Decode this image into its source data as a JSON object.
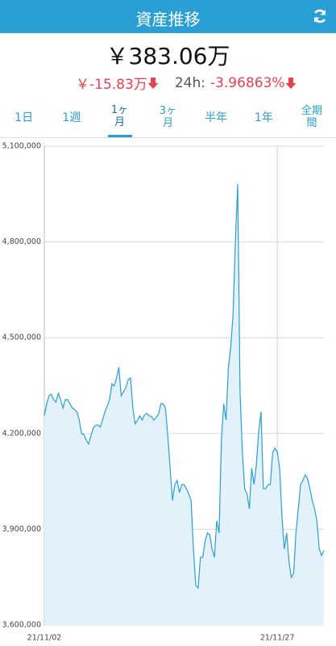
{
  "header": {
    "title": "資産推移"
  },
  "summary": {
    "total": "￥383.06万",
    "change": "￥-15.83万",
    "change_24h_label": "24h:",
    "change_24h_percent": "-3.96863%"
  },
  "tabs": {
    "items": [
      "1日",
      "1週",
      "1ヶ月",
      "3ヶ月",
      "半年",
      "1年",
      "全期間"
    ],
    "active": 2
  },
  "chart_data": {
    "type": "area",
    "color": "#2a9fd6",
    "fill": "#e2f1fa",
    "grid": true,
    "values": [
      4255000,
      4293000,
      4318000,
      4323000,
      4306000,
      4298000,
      4326000,
      4306000,
      4280000,
      4306000,
      4306000,
      4293000,
      4280000,
      4275000,
      4268000,
      4242000,
      4199000,
      4197000,
      4179000,
      4167000,
      4192000,
      4217000,
      4225000,
      4227000,
      4220000,
      4242000,
      4268000,
      4286000,
      4306000,
      4356000,
      4349000,
      4374000,
      4407000,
      4318000,
      4331000,
      4344000,
      4369000,
      4374000,
      4280000,
      4230000,
      4242000,
      4255000,
      4242000,
      4258000,
      4263000,
      4255000,
      4253000,
      4242000,
      4250000,
      4260000,
      4293000,
      4293000,
      4280000,
      4192000,
      4091000,
      3990000,
      4040000,
      4053000,
      4015000,
      4040000,
      4040000,
      4027000,
      4010000,
      3990000,
      3838000,
      3724000,
      3716000,
      3812000,
      3812000,
      3863000,
      3888000,
      3883000,
      3838000,
      3812000,
      3926000,
      3888000,
      4179000,
      4293000,
      4242000,
      4407000,
      4470000,
      4571000,
      4799000,
      4981000,
      4331000,
      4141000,
      4027000,
      4010000,
      3964000,
      4091000,
      4040000,
      4103000,
      4205000,
      4268000,
      4027000,
      4027000,
      4040000,
      4040000,
      4141000,
      4154000,
      4141000,
      4091000,
      3939000,
      3838000,
      3888000,
      3800000,
      3749000,
      3762000,
      3888000,
      3964000,
      4040000,
      4053000,
      4070000,
      4058000,
      4027000,
      3990000,
      3964000,
      3926000,
      3838000,
      3818000,
      3833000
    ],
    "xlim": [
      0,
      120
    ],
    "xticks": [
      {
        "value": 0,
        "label": "21/11/02"
      },
      {
        "value": 100,
        "label": "21/11/27"
      }
    ],
    "ylim": [
      3600000,
      5100000
    ],
    "yticks": [
      {
        "value": 3600000,
        "label": "3,600,000"
      },
      {
        "value": 3900000,
        "label": "3,900,000"
      },
      {
        "value": 4200000,
        "label": "4,200,000"
      },
      {
        "value": 4500000,
        "label": "4,500,000"
      },
      {
        "value": 4800000,
        "label": "4,800,000"
      },
      {
        "value": 5100000,
        "label": "5,100,000"
      }
    ]
  }
}
